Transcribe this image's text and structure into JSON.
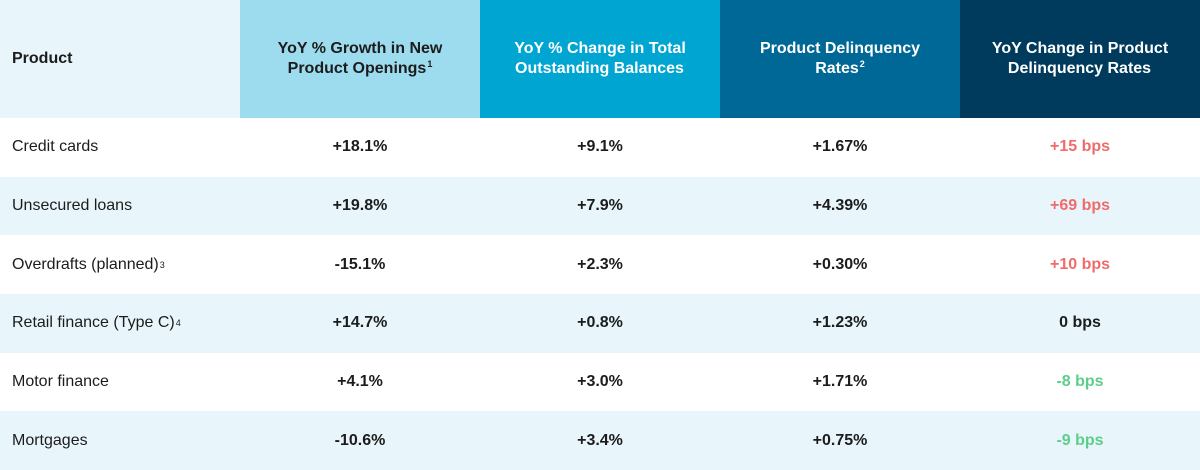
{
  "colors": {
    "header_col0": "#e8f6fb",
    "header_col1": "#9ddcee",
    "header_col2": "#00a6d1",
    "header_col3": "#006896",
    "header_col4": "#003a5c",
    "alt_row": "#e8f6fb",
    "increase_red": "#f06b6b",
    "decrease_green": "#5ccd8a",
    "neutral": "#1c1c1c"
  },
  "headers": [
    {
      "text": "Product",
      "sup": ""
    },
    {
      "text": "YoY % Growth in New Product Openings",
      "sup": "1"
    },
    {
      "text": "YoY % Change in Total Outstanding Balances",
      "sup": ""
    },
    {
      "text": "Product Delinquency Rates",
      "sup": "2"
    },
    {
      "text": "YoY Change in Product Delinquency Rates",
      "sup": ""
    }
  ],
  "rows": [
    {
      "product": "Credit cards",
      "sup": "",
      "openings": "+18.1%",
      "balances": "+9.1%",
      "delinquency": "+1.67%",
      "change": "+15 bps",
      "trend": "up"
    },
    {
      "product": "Unsecured loans",
      "sup": "",
      "openings": "+19.8%",
      "balances": "+7.9%",
      "delinquency": "+4.39%",
      "change": "+69 bps",
      "trend": "up"
    },
    {
      "product": "Overdrafts (planned)",
      "sup": "3",
      "openings": "-15.1%",
      "balances": "+2.3%",
      "delinquency": "+0.30%",
      "change": "+10 bps",
      "trend": "up"
    },
    {
      "product": "Retail finance (Type C)",
      "sup": "4",
      "openings": "+14.7%",
      "balances": "+0.8%",
      "delinquency": "+1.23%",
      "change": "0 bps",
      "trend": "flat"
    },
    {
      "product": "Motor finance",
      "sup": "",
      "openings": "+4.1%",
      "balances": "+3.0%",
      "delinquency": "+1.71%",
      "change": "-8 bps",
      "trend": "down"
    },
    {
      "product": "Mortgages",
      "sup": "",
      "openings": "-10.6%",
      "balances": "+3.4%",
      "delinquency": "+0.75%",
      "change": "-9 bps",
      "trend": "down"
    }
  ]
}
